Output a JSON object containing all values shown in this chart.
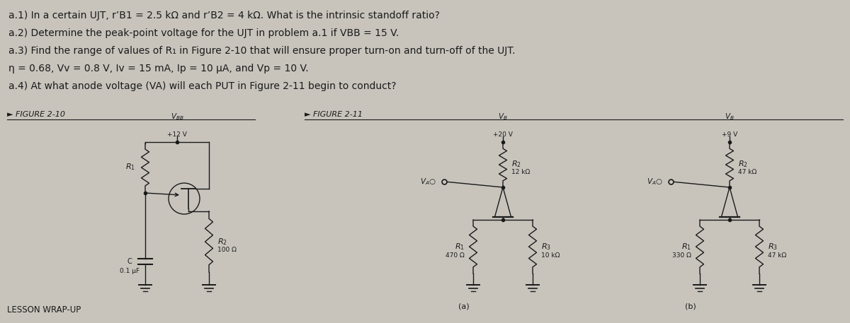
{
  "bg_color": "#c8c4bc",
  "text_color": "#1a1a1a",
  "line1": "a.1) In a certain UJT, r’B1 = 2.5 kΩ and r’B2 = 4 kΩ. What is the intrinsic standoff ratio?",
  "line2": "a.2) Determine the peak-point voltage for the UJT in problem a.1 if VBB = 15 V.",
  "line3": "a.3) Find the range of values of R₁ in Figure 2-10 that will ensure proper turn-on and turn-off of the UJT.",
  "line4": "η = 0.68, Vv = 0.8 V, Iv = 15 mA, Ip = 10 μA, and Vp = 10 V.",
  "line5": "a.4) At what anode voltage (VA) will each PUT in Figure 2-11 begin to conduct?",
  "fig210_label": "► FIGURE 2-10",
  "fig211_label": "► FIGURE 2-11",
  "label_a": "(a)",
  "label_b": "(b)"
}
